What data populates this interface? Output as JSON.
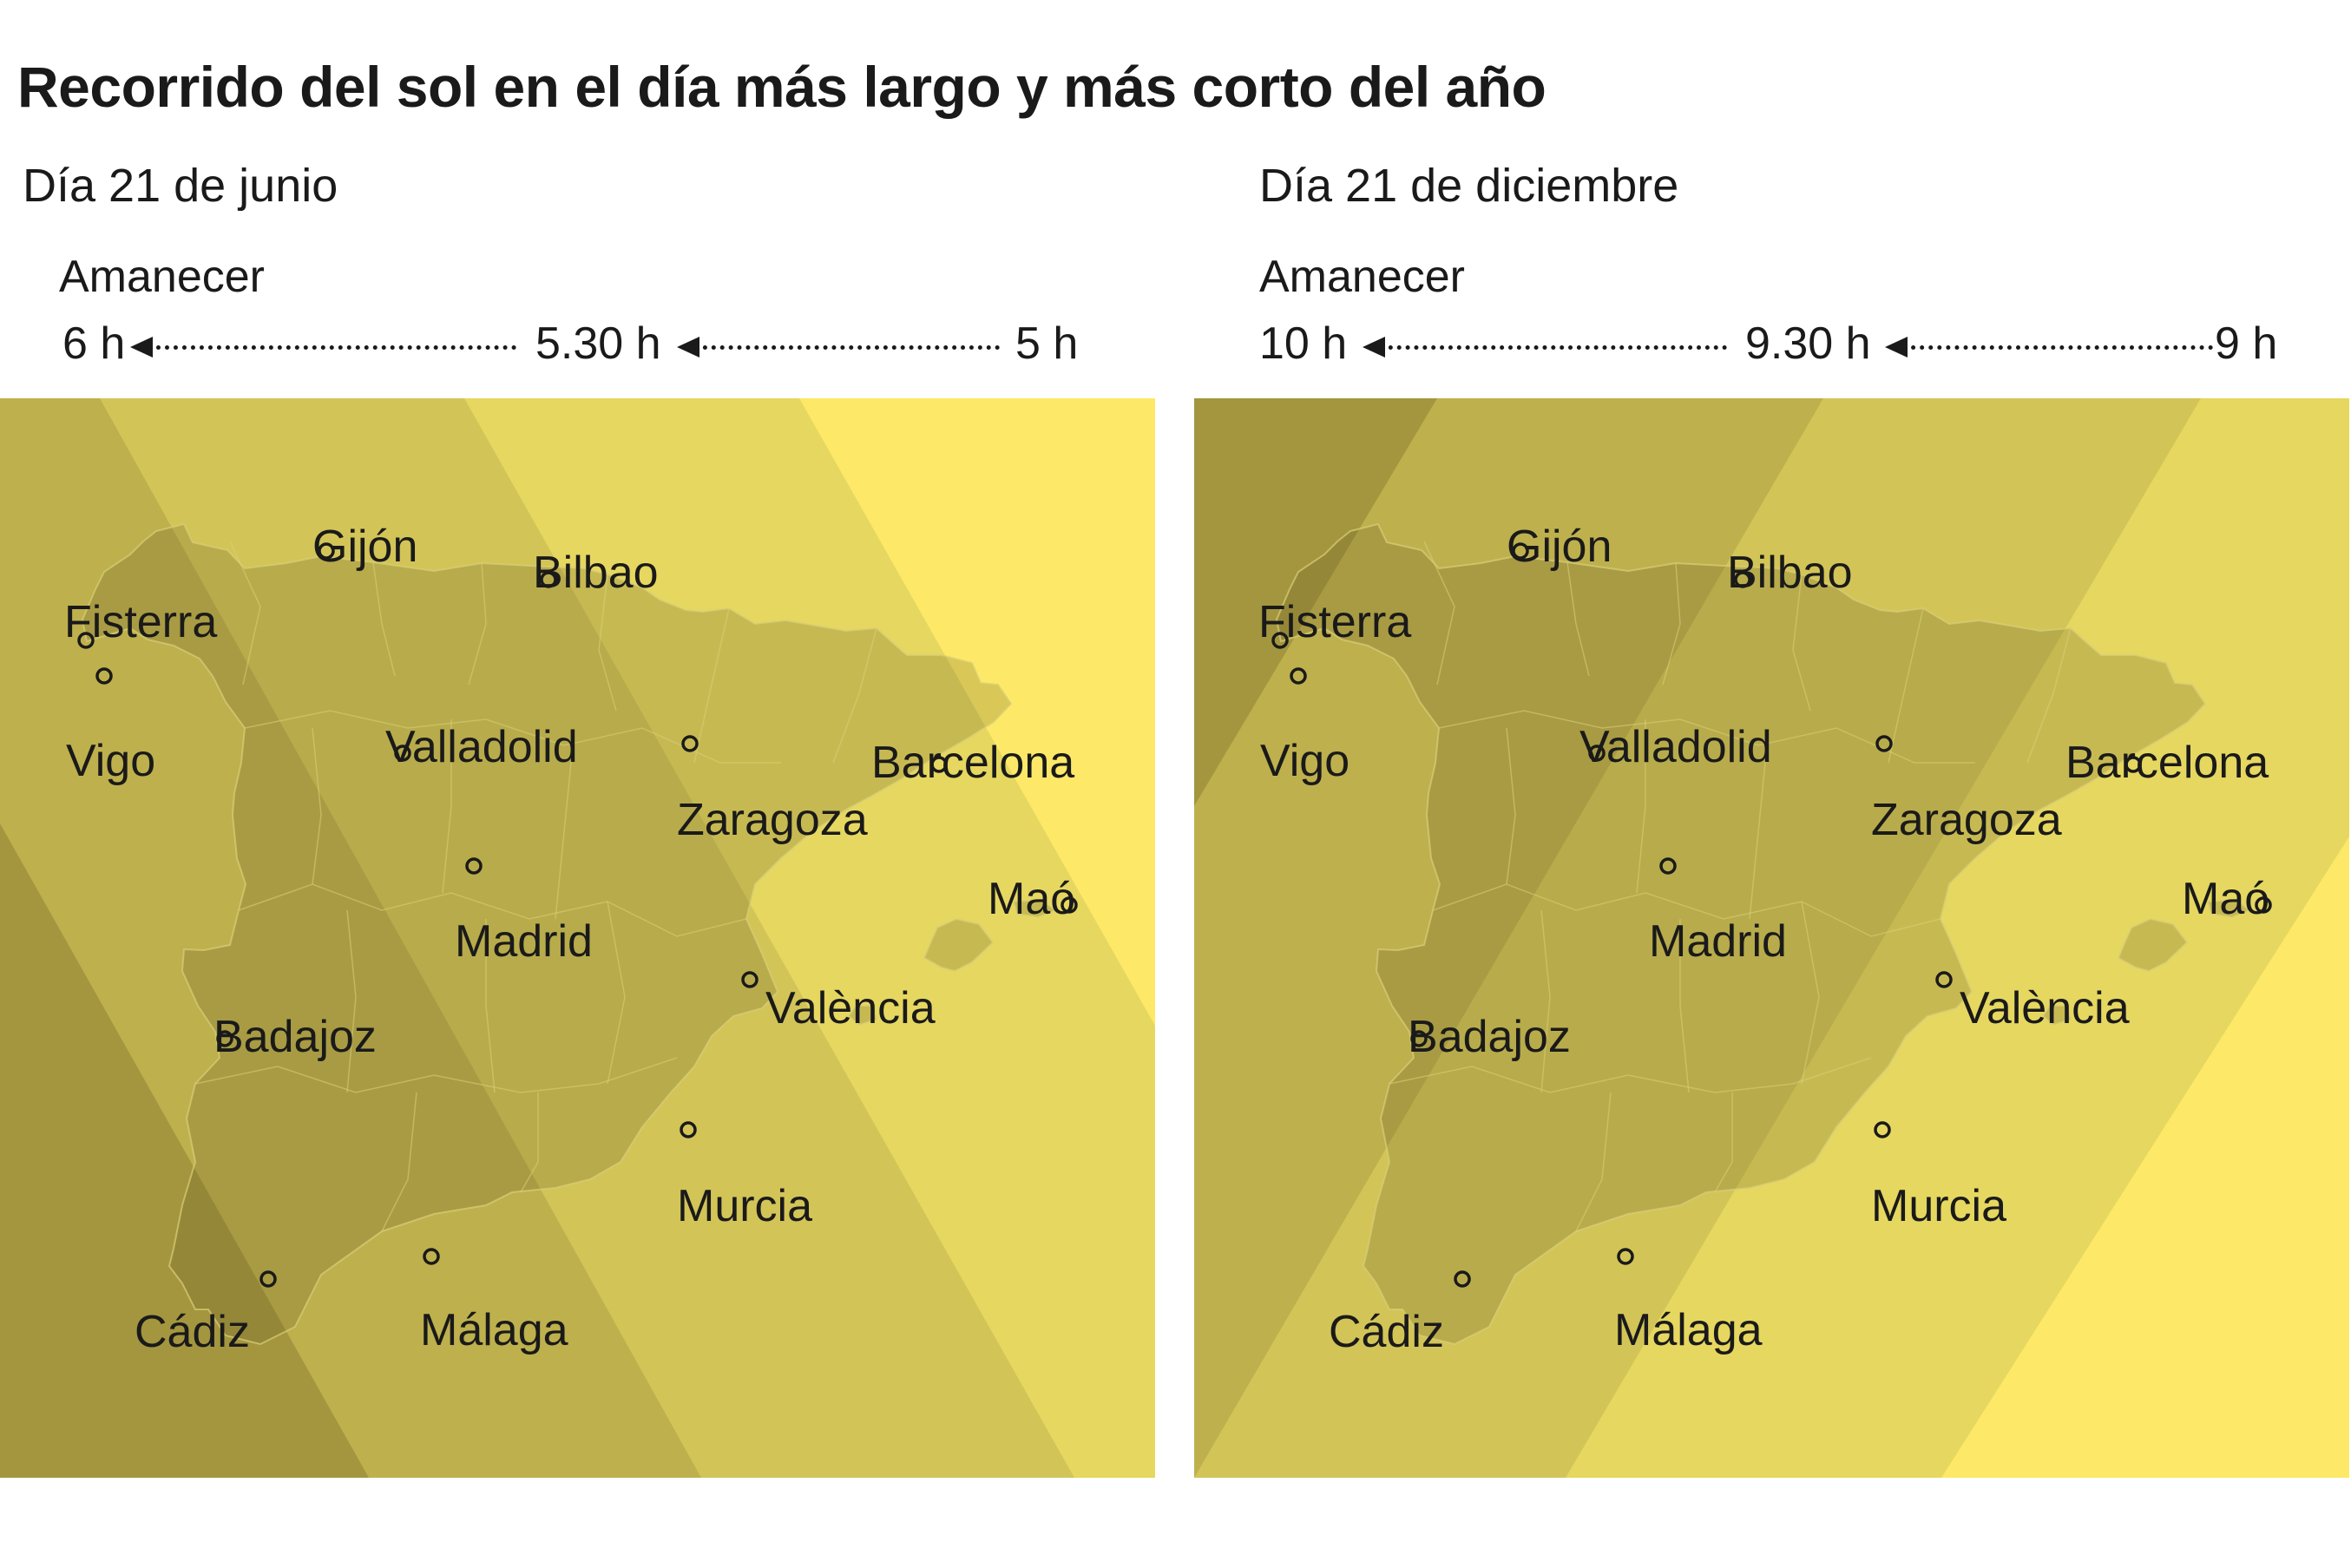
{
  "title": "Recorrido del sol en el día más largo y más corto del año",
  "panels": [
    {
      "subtitle": "Día 21 de junio",
      "sunrise_label": "Amanecer",
      "times": [
        "6 h",
        "5.30 h",
        "5 h"
      ],
      "band_colors": [
        "#a4963f",
        "#beb04d",
        "#d3c458",
        "#e6d760",
        "#fde967"
      ]
    },
    {
      "subtitle": "Día 21 de diciembre",
      "sunrise_label": "Amanecer",
      "times": [
        "10 h",
        "9.30 h",
        "9 h"
      ],
      "band_colors": [
        "#a4963f",
        "#beb04d",
        "#d3c458",
        "#e6d760",
        "#fde967"
      ]
    }
  ],
  "cities": [
    {
      "name": "Gijón"
    },
    {
      "name": "Bilbao"
    },
    {
      "name": "Fisterra"
    },
    {
      "name": "Vigo"
    },
    {
      "name": "Valladolid"
    },
    {
      "name": "Zaragoza"
    },
    {
      "name": "Barcelona"
    },
    {
      "name": "Maó"
    },
    {
      "name": "Madrid"
    },
    {
      "name": "València"
    },
    {
      "name": "Badajoz"
    },
    {
      "name": "Murcia"
    },
    {
      "name": "Cádiz"
    },
    {
      "name": "Málaga"
    }
  ],
  "colors": {
    "land_shade": "#5a5420",
    "province_border": "#d9cf78",
    "text": "#1a1a1a"
  }
}
